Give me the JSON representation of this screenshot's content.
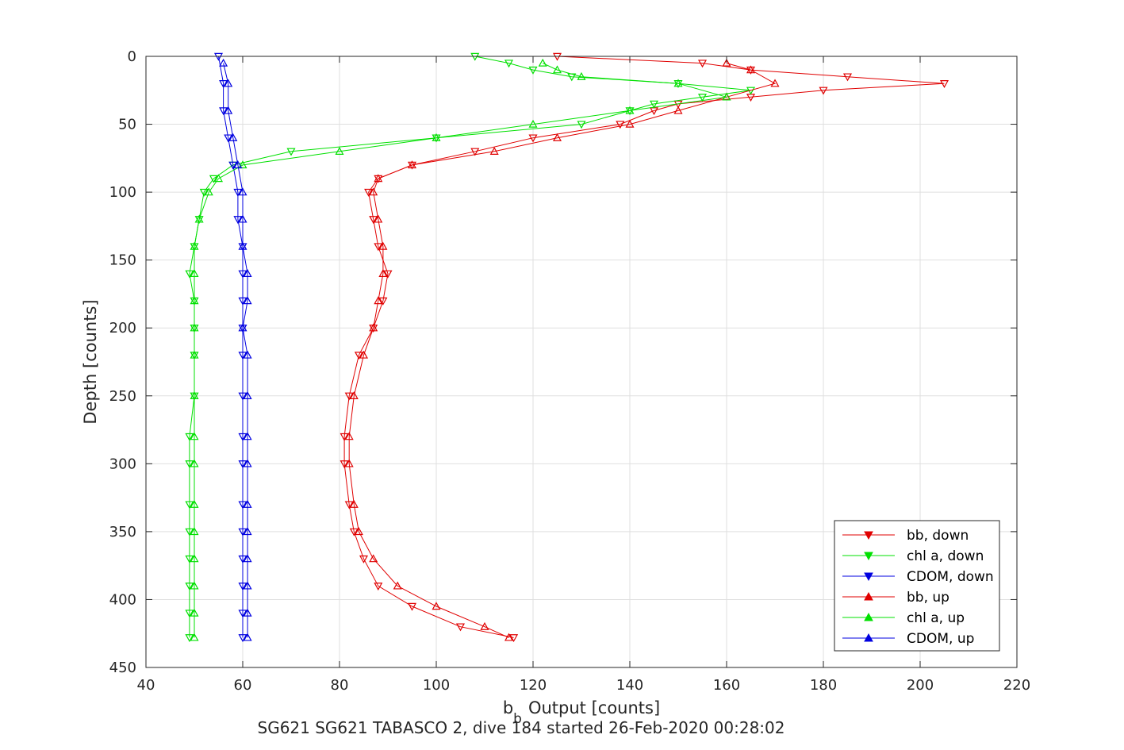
{
  "chart_data": {
    "type": "scatter",
    "title": "",
    "xlabel": "Output [counts]",
    "xlabel_prefix": "b",
    "xlabel_sub": "b",
    "ylabel": "Depth [counts]",
    "footer": "SG621 SG621 TABASCO 2, dive 184 started 26-Feb-2020 00:28:02",
    "xlim": [
      40,
      220
    ],
    "ylim": [
      0,
      450
    ],
    "y_reversed": true,
    "grid": true,
    "legend_position": "bottom-right",
    "x_ticks": [
      "40",
      "60",
      "80",
      "100",
      "120",
      "140",
      "160",
      "180",
      "200",
      "220"
    ],
    "y_ticks": [
      "0",
      "50",
      "100",
      "150",
      "200",
      "250",
      "300",
      "350",
      "400",
      "450"
    ],
    "series": [
      {
        "name": "bb, down",
        "color": "#e00000",
        "marker": "triangle-down",
        "depth": [
          0,
          5,
          10,
          15,
          20,
          25,
          30,
          35,
          40,
          50,
          60,
          70,
          80,
          90,
          100,
          120,
          140,
          160,
          180,
          200,
          220,
          250,
          280,
          300,
          330,
          350,
          370,
          390,
          405,
          420,
          428
        ],
        "value": [
          125,
          155,
          165,
          185,
          205,
          180,
          165,
          150,
          145,
          138,
          120,
          108,
          95,
          88,
          86,
          87,
          88,
          90,
          89,
          87,
          84,
          82,
          81,
          81,
          82,
          83,
          85,
          88,
          95,
          105,
          116
        ]
      },
      {
        "name": "chl a, down",
        "color": "#00e000",
        "marker": "triangle-down",
        "depth": [
          0,
          5,
          10,
          15,
          20,
          25,
          30,
          35,
          40,
          50,
          60,
          70,
          80,
          90,
          100,
          120,
          140,
          160,
          180,
          200,
          220,
          250,
          280,
          300,
          330,
          350,
          370,
          390,
          410,
          428
        ],
        "value": [
          108,
          115,
          120,
          128,
          150,
          165,
          155,
          145,
          140,
          130,
          100,
          70,
          58,
          54,
          52,
          51,
          50,
          49,
          50,
          50,
          50,
          50,
          49,
          49,
          49,
          49,
          49,
          49,
          49,
          49
        ]
      },
      {
        "name": "CDOM, down",
        "color": "#0000e0",
        "marker": "triangle-down",
        "depth": [
          0,
          20,
          40,
          60,
          80,
          100,
          120,
          140,
          160,
          180,
          200,
          220,
          250,
          280,
          300,
          330,
          350,
          370,
          390,
          410,
          428
        ],
        "value": [
          55,
          56,
          56,
          57,
          58,
          59,
          59,
          60,
          60,
          60,
          60,
          60,
          60,
          60,
          60,
          60,
          60,
          60,
          60,
          60,
          60
        ]
      },
      {
        "name": "bb, up",
        "color": "#e00000",
        "marker": "triangle-up",
        "depth": [
          428,
          420,
          405,
          390,
          370,
          350,
          330,
          300,
          280,
          250,
          220,
          200,
          180,
          160,
          140,
          120,
          100,
          90,
          80,
          70,
          60,
          50,
          40,
          30,
          20,
          10,
          5
        ],
        "value": [
          115,
          110,
          100,
          92,
          87,
          84,
          83,
          82,
          82,
          83,
          85,
          87,
          88,
          89,
          89,
          88,
          87,
          88,
          95,
          112,
          125,
          140,
          150,
          160,
          170,
          165,
          160
        ]
      },
      {
        "name": "chl a, up",
        "color": "#00e000",
        "marker": "triangle-up",
        "depth": [
          428,
          410,
          390,
          370,
          350,
          330,
          300,
          280,
          250,
          220,
          200,
          180,
          160,
          140,
          120,
          100,
          90,
          80,
          70,
          60,
          50,
          40,
          30,
          20,
          15,
          10,
          5
        ],
        "value": [
          50,
          50,
          50,
          50,
          50,
          50,
          50,
          50,
          50,
          50,
          50,
          50,
          50,
          50,
          51,
          53,
          55,
          60,
          80,
          100,
          120,
          140,
          160,
          150,
          130,
          125,
          122
        ]
      },
      {
        "name": "CDOM, up",
        "color": "#0000e0",
        "marker": "triangle-up",
        "depth": [
          428,
          410,
          390,
          370,
          350,
          330,
          300,
          280,
          250,
          220,
          200,
          180,
          160,
          140,
          120,
          100,
          80,
          60,
          40,
          20,
          5
        ],
        "value": [
          61,
          61,
          61,
          61,
          61,
          61,
          61,
          61,
          61,
          61,
          60,
          61,
          61,
          60,
          60,
          60,
          59,
          58,
          57,
          57,
          56
        ]
      }
    ]
  }
}
